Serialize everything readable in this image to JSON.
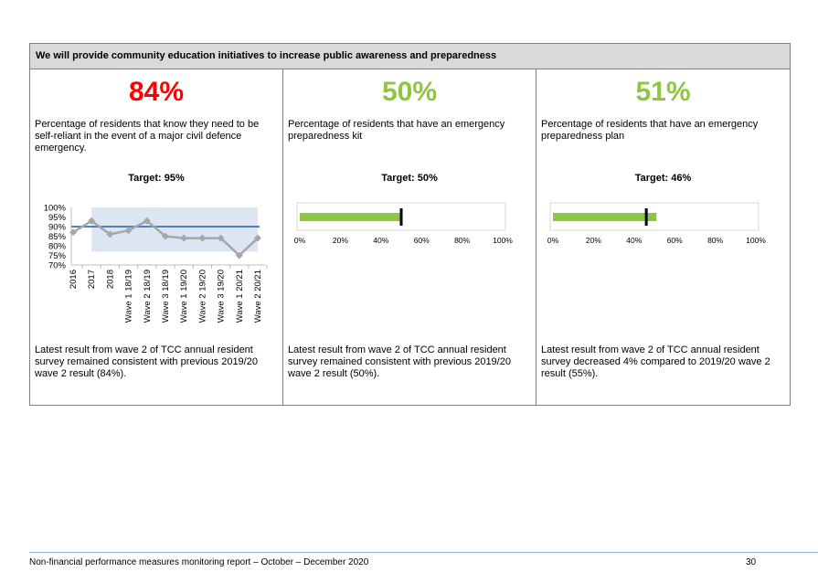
{
  "header": {
    "title": "We will provide community education initiatives to increase public awareness and preparedness"
  },
  "measures": [
    {
      "value_text": "84%",
      "value_color": "#ff0000",
      "description": "Percentage of residents that know they need to be self-reliant in the event of a major civil defence emergency.",
      "target_text": "Target: 95%",
      "latest": "Latest result from wave 2 of TCC annual resident survey remained consistent with previous 2019/20 wave 2 result (84%)."
    },
    {
      "value_text": "50%",
      "value_color": "#8dc63f",
      "description": "Percentage of residents that have an emergency preparedness kit",
      "target_text": "Target: 50%",
      "latest": "Latest result from wave 2 of TCC annual resident survey remained consistent with previous 2019/20 wave 2 result (50%)."
    },
    {
      "value_text": "51%",
      "value_color": "#8dc63f",
      "description": "Percentage of residents that have an emergency preparedness plan",
      "target_text": "Target: 46%",
      "latest": "Latest result from wave 2 of TCC annual resident survey decreased 4% compared to 2019/20 wave 2 result (55%)."
    }
  ],
  "chart_data": [
    {
      "type": "line",
      "categories": [
        "2016",
        "2017",
        "2018",
        "Wave 1 18/19",
        "Wave 2 18/19",
        "Wave 3 18/19",
        "Wave 1 19/20",
        "Wave 2 19/20",
        "Wave 3 19/20",
        "Wave 1 20/21",
        "Wave 2 20/21"
      ],
      "series": [
        {
          "values": [
            87,
            93,
            86,
            88,
            93,
            85,
            84,
            84,
            84,
            75,
            84
          ],
          "color": "#a6a6a6"
        }
      ],
      "reference_line": 90,
      "reference_color": "#4f81bd",
      "shaded_band": {
        "from_index": 1,
        "to_index": 10,
        "y_range": [
          77,
          100
        ],
        "color": "#dce6f2"
      },
      "yticks": [
        "70%",
        "75%",
        "80%",
        "85%",
        "90%",
        "95%",
        "100%"
      ],
      "ylim": [
        70,
        100
      ]
    },
    {
      "type": "bar",
      "orientation": "horizontal",
      "values": [
        50
      ],
      "target": 50,
      "bar_color": "#8dc63f",
      "target_color": "#000000",
      "xlim": [
        0,
        100
      ],
      "xticks": [
        "0%",
        "20%",
        "40%",
        "60%",
        "80%",
        "100%"
      ]
    },
    {
      "type": "bar",
      "orientation": "horizontal",
      "values": [
        51
      ],
      "target": 46,
      "bar_color": "#8dc63f",
      "target_color": "#000000",
      "xlim": [
        0,
        100
      ],
      "xticks": [
        "0%",
        "20%",
        "40%",
        "60%",
        "80%",
        "100%"
      ]
    }
  ],
  "footer": {
    "title": "Non-financial performance measures monitoring report – October – December 2020",
    "page": "30"
  }
}
